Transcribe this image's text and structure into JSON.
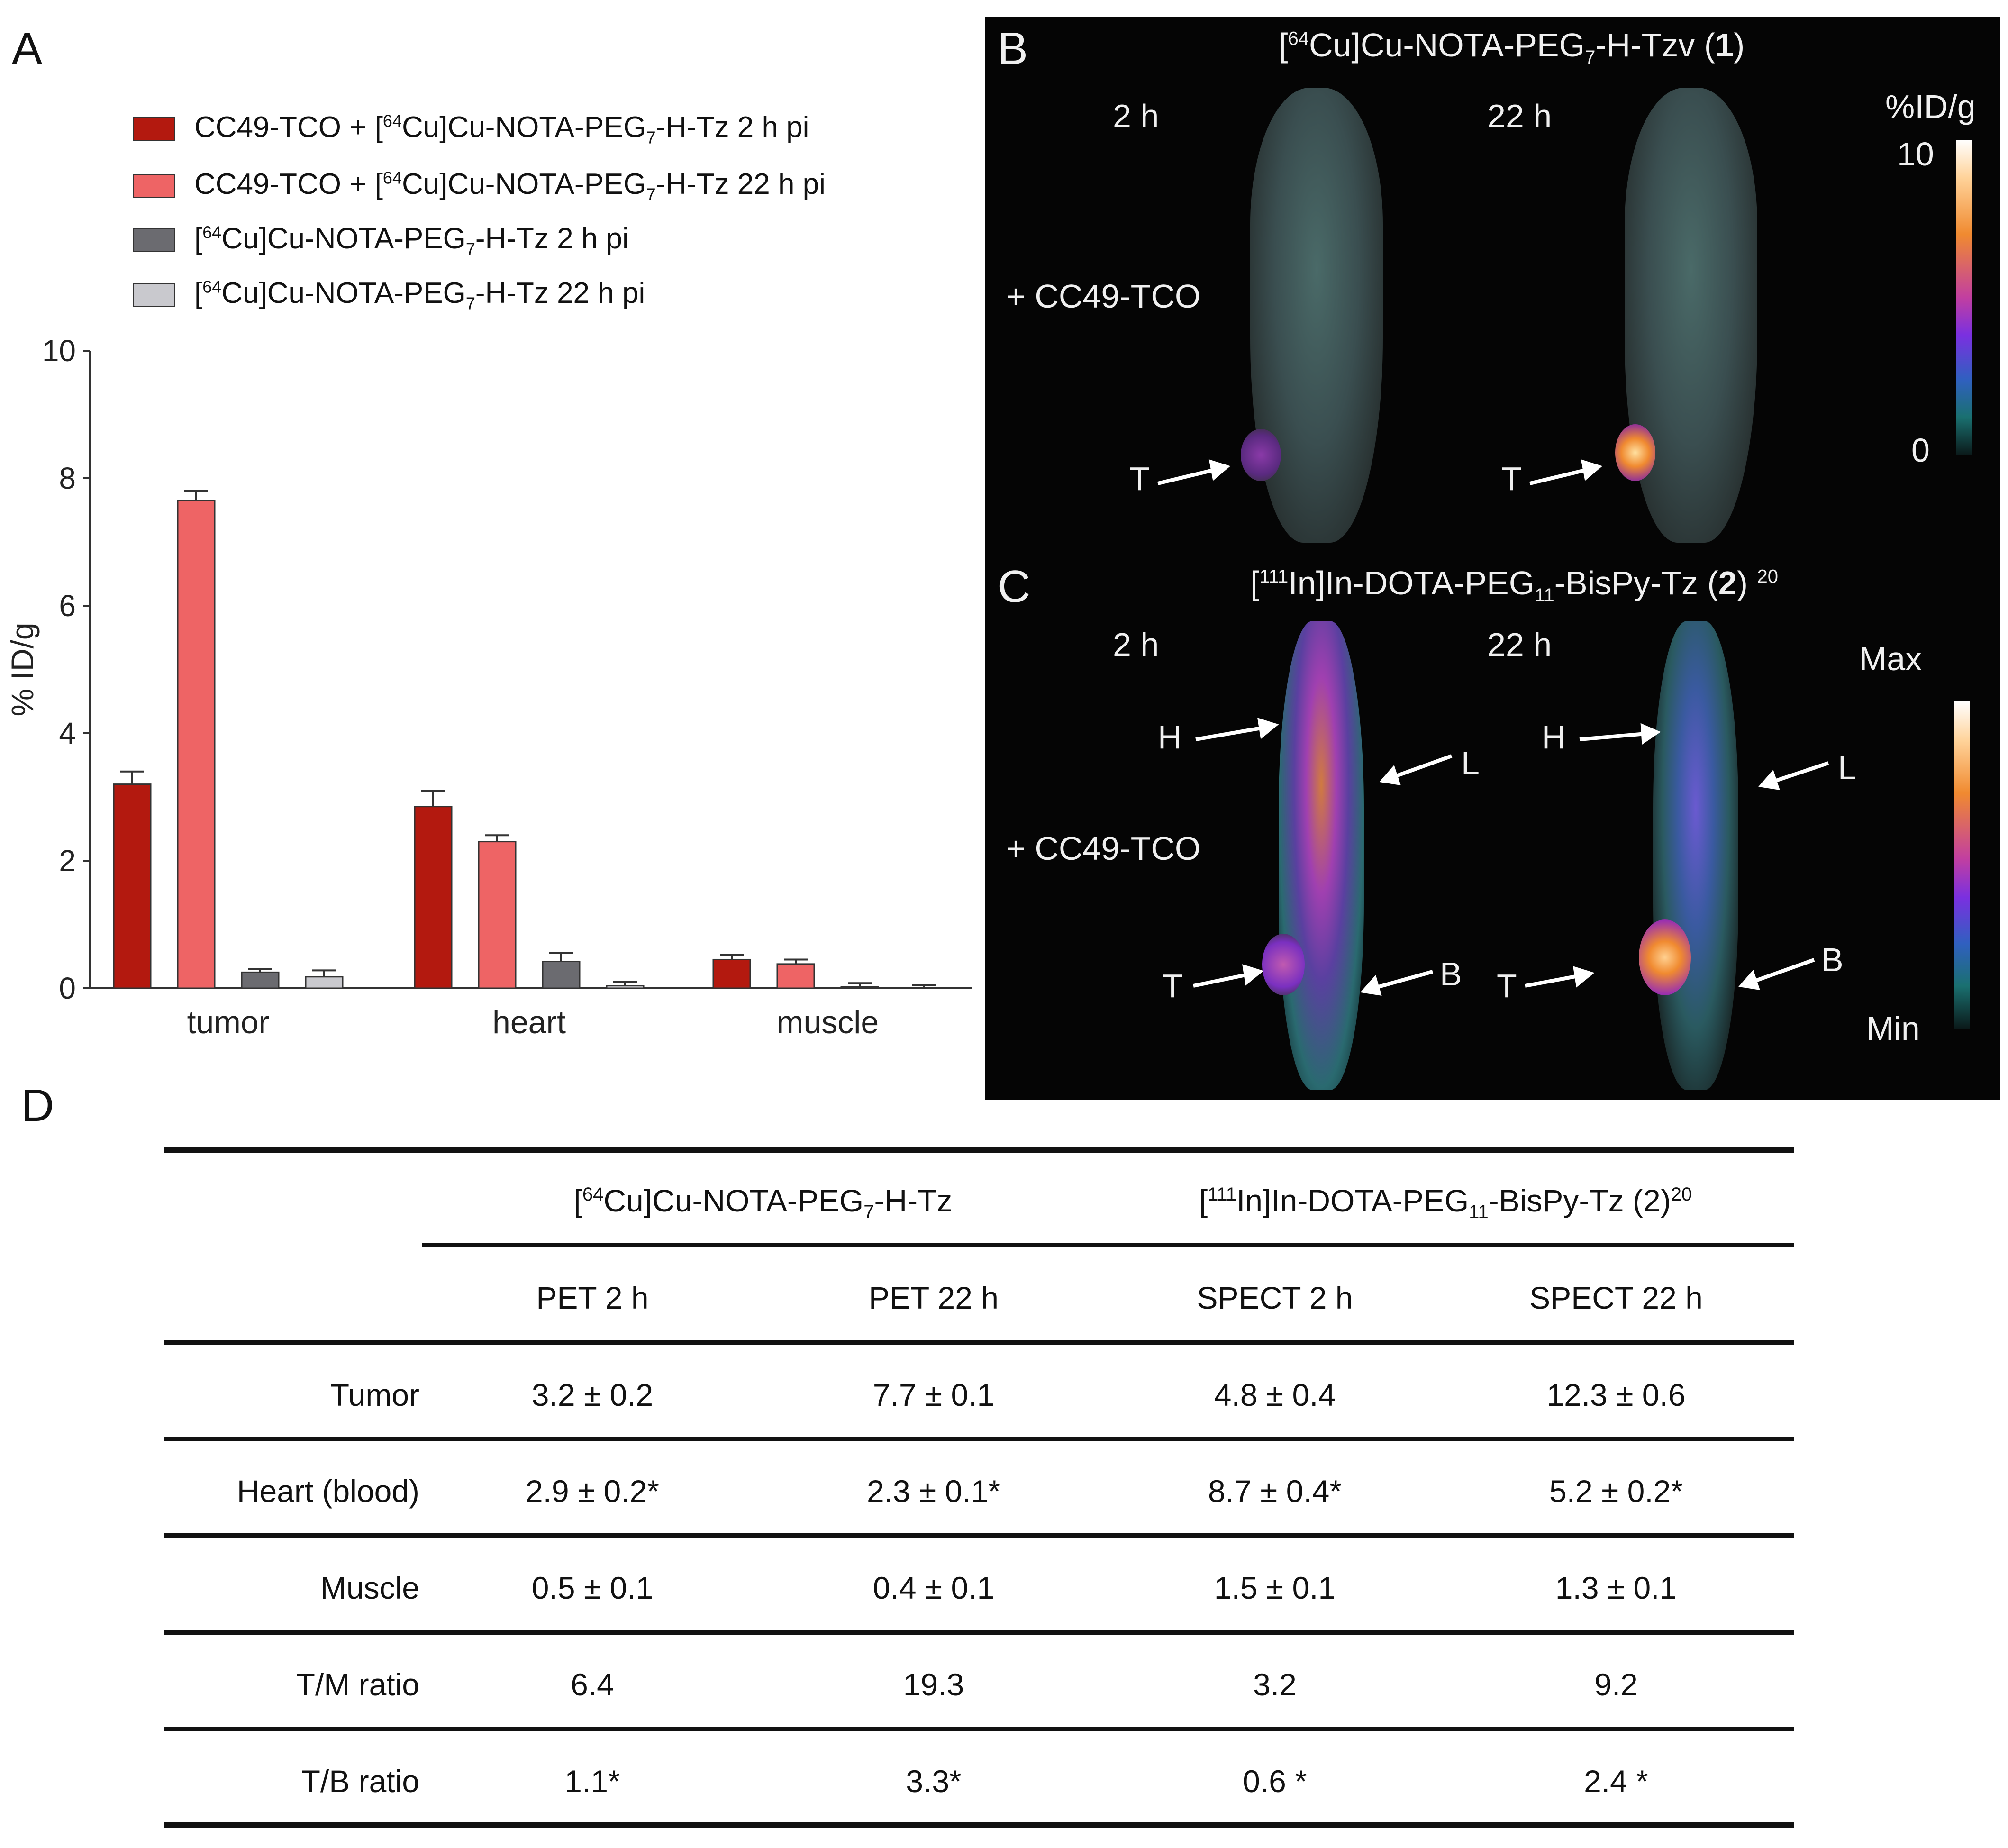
{
  "panels": {
    "a": "A",
    "b": "B",
    "c": "C",
    "d": "D"
  },
  "legend": [
    {
      "text_pre": "CC49-TCO + [",
      "sup": "64",
      "text_mid": "Cu]Cu-NOTA-PEG",
      "sub": "7",
      "text_post": "-H-Tz 2 h pi",
      "color": "#b3190f"
    },
    {
      "text_pre": "CC49-TCO + [",
      "sup": "64",
      "text_mid": "Cu]Cu-NOTA-PEG",
      "sub": "7",
      "text_post": "-H-Tz 22 h pi",
      "color": "#ee6465"
    },
    {
      "text_pre": "[",
      "sup": "64",
      "text_mid": "Cu]Cu-NOTA-PEG",
      "sub": "7",
      "text_post": "-H-Tz 2 h pi",
      "color": "#6b6b70"
    },
    {
      "text_pre": "[",
      "sup": "64",
      "text_mid": "Cu]Cu-NOTA-PEG",
      "sub": "7",
      "text_post": "-H-Tz 22 h pi",
      "color": "#c9c9ce"
    }
  ],
  "chart_data": {
    "type": "bar",
    "categories": [
      "tumor",
      "heart",
      "muscle"
    ],
    "ylabel": "% ID/g",
    "ylim": [
      0,
      10
    ],
    "yticks": [
      "0",
      "2",
      "4",
      "6",
      "8",
      "10"
    ],
    "series": [
      {
        "name": "CC49-TCO + [64Cu]Cu-NOTA-PEG7-H-Tz 2 h pi",
        "values": [
          3.2,
          2.85,
          0.45
        ],
        "errors": [
          0.2,
          0.25,
          0.07
        ]
      },
      {
        "name": "CC49-TCO + [64Cu]Cu-NOTA-PEG7-H-Tz 22 h pi",
        "values": [
          7.65,
          2.3,
          0.38
        ],
        "errors": [
          0.15,
          0.1,
          0.07
        ]
      },
      {
        "name": "[64Cu]Cu-NOTA-PEG7-H-Tz 2 h pi",
        "values": [
          0.25,
          0.42,
          0.02
        ],
        "errors": [
          0.05,
          0.13,
          0.06
        ]
      },
      {
        "name": "[64Cu]Cu-NOTA-PEG7-H-Tz 22 h pi",
        "values": [
          0.18,
          0.04,
          0.0
        ],
        "errors": [
          0.1,
          0.06,
          0.05
        ]
      }
    ],
    "colors": [
      "#b3190f",
      "#ee6465",
      "#6b6b70",
      "#c9c9ce"
    ]
  },
  "panel_b": {
    "title_pre": "[",
    "title_sup": "64",
    "title_mid": "Cu]Cu-NOTA-PEG",
    "title_sub": "7",
    "title_post": "-H-Tzv (",
    "title_bold": "1",
    "title_end": ")",
    "time_left": "2 h",
    "time_right": "22 h",
    "treatment": "+ CC49-TCO",
    "tumor_label_left": "T",
    "tumor_label_right": "T",
    "scale_unit": "%ID/g",
    "scale_max": "10",
    "scale_min": "0"
  },
  "panel_c": {
    "title_pre": "[",
    "title_sup": "111",
    "title_mid": "In]In-DOTA-PEG",
    "title_sub": "11",
    "title_post": "-BisPy-Tz (",
    "title_bold": "2",
    "title_end": ")",
    "title_ref": "20",
    "time_left": "2 h",
    "time_right": "22 h",
    "treatment": "+ CC49-TCO",
    "label_h": "H",
    "label_l": "L",
    "label_t": "T",
    "label_b": "B",
    "scale_max": "Max",
    "scale_min": "Min"
  },
  "table": {
    "group1_pre": "[",
    "group1_sup": "64",
    "group1_mid": "Cu]Cu-NOTA-PEG",
    "group1_sub": "7",
    "group1_post": "-H-Tz",
    "group2_pre": "[",
    "group2_sup": "111",
    "group2_mid": "In]In-DOTA-PEG",
    "group2_sub": "11",
    "group2_post": "-BisPy-Tz (2)",
    "group2_ref": "20",
    "columns": [
      "PET 2 h",
      "PET 22 h",
      "SPECT 2 h",
      "SPECT 22 h"
    ],
    "rows": [
      {
        "label": "Tumor",
        "cells": [
          "3.2 ± 0.2",
          "7.7 ± 0.1",
          "4.8 ± 0.4",
          "12.3 ± 0.6"
        ]
      },
      {
        "label": "Heart (blood)",
        "cells": [
          "2.9 ± 0.2*",
          "2.3 ± 0.1*",
          "8.7 ± 0.4*",
          "5.2 ± 0.2*"
        ]
      },
      {
        "label": "Muscle",
        "cells": [
          "0.5 ± 0.1",
          "0.4 ± 0.1",
          "1.5 ± 0.1",
          "1.3 ± 0.1"
        ]
      },
      {
        "label": "T/M ratio",
        "cells": [
          "6.4",
          "19.3",
          "3.2",
          "9.2"
        ]
      },
      {
        "label": "T/B ratio",
        "cells": [
          "1.1*",
          "3.3*",
          "0.6 *",
          "2.4 *"
        ]
      }
    ]
  }
}
